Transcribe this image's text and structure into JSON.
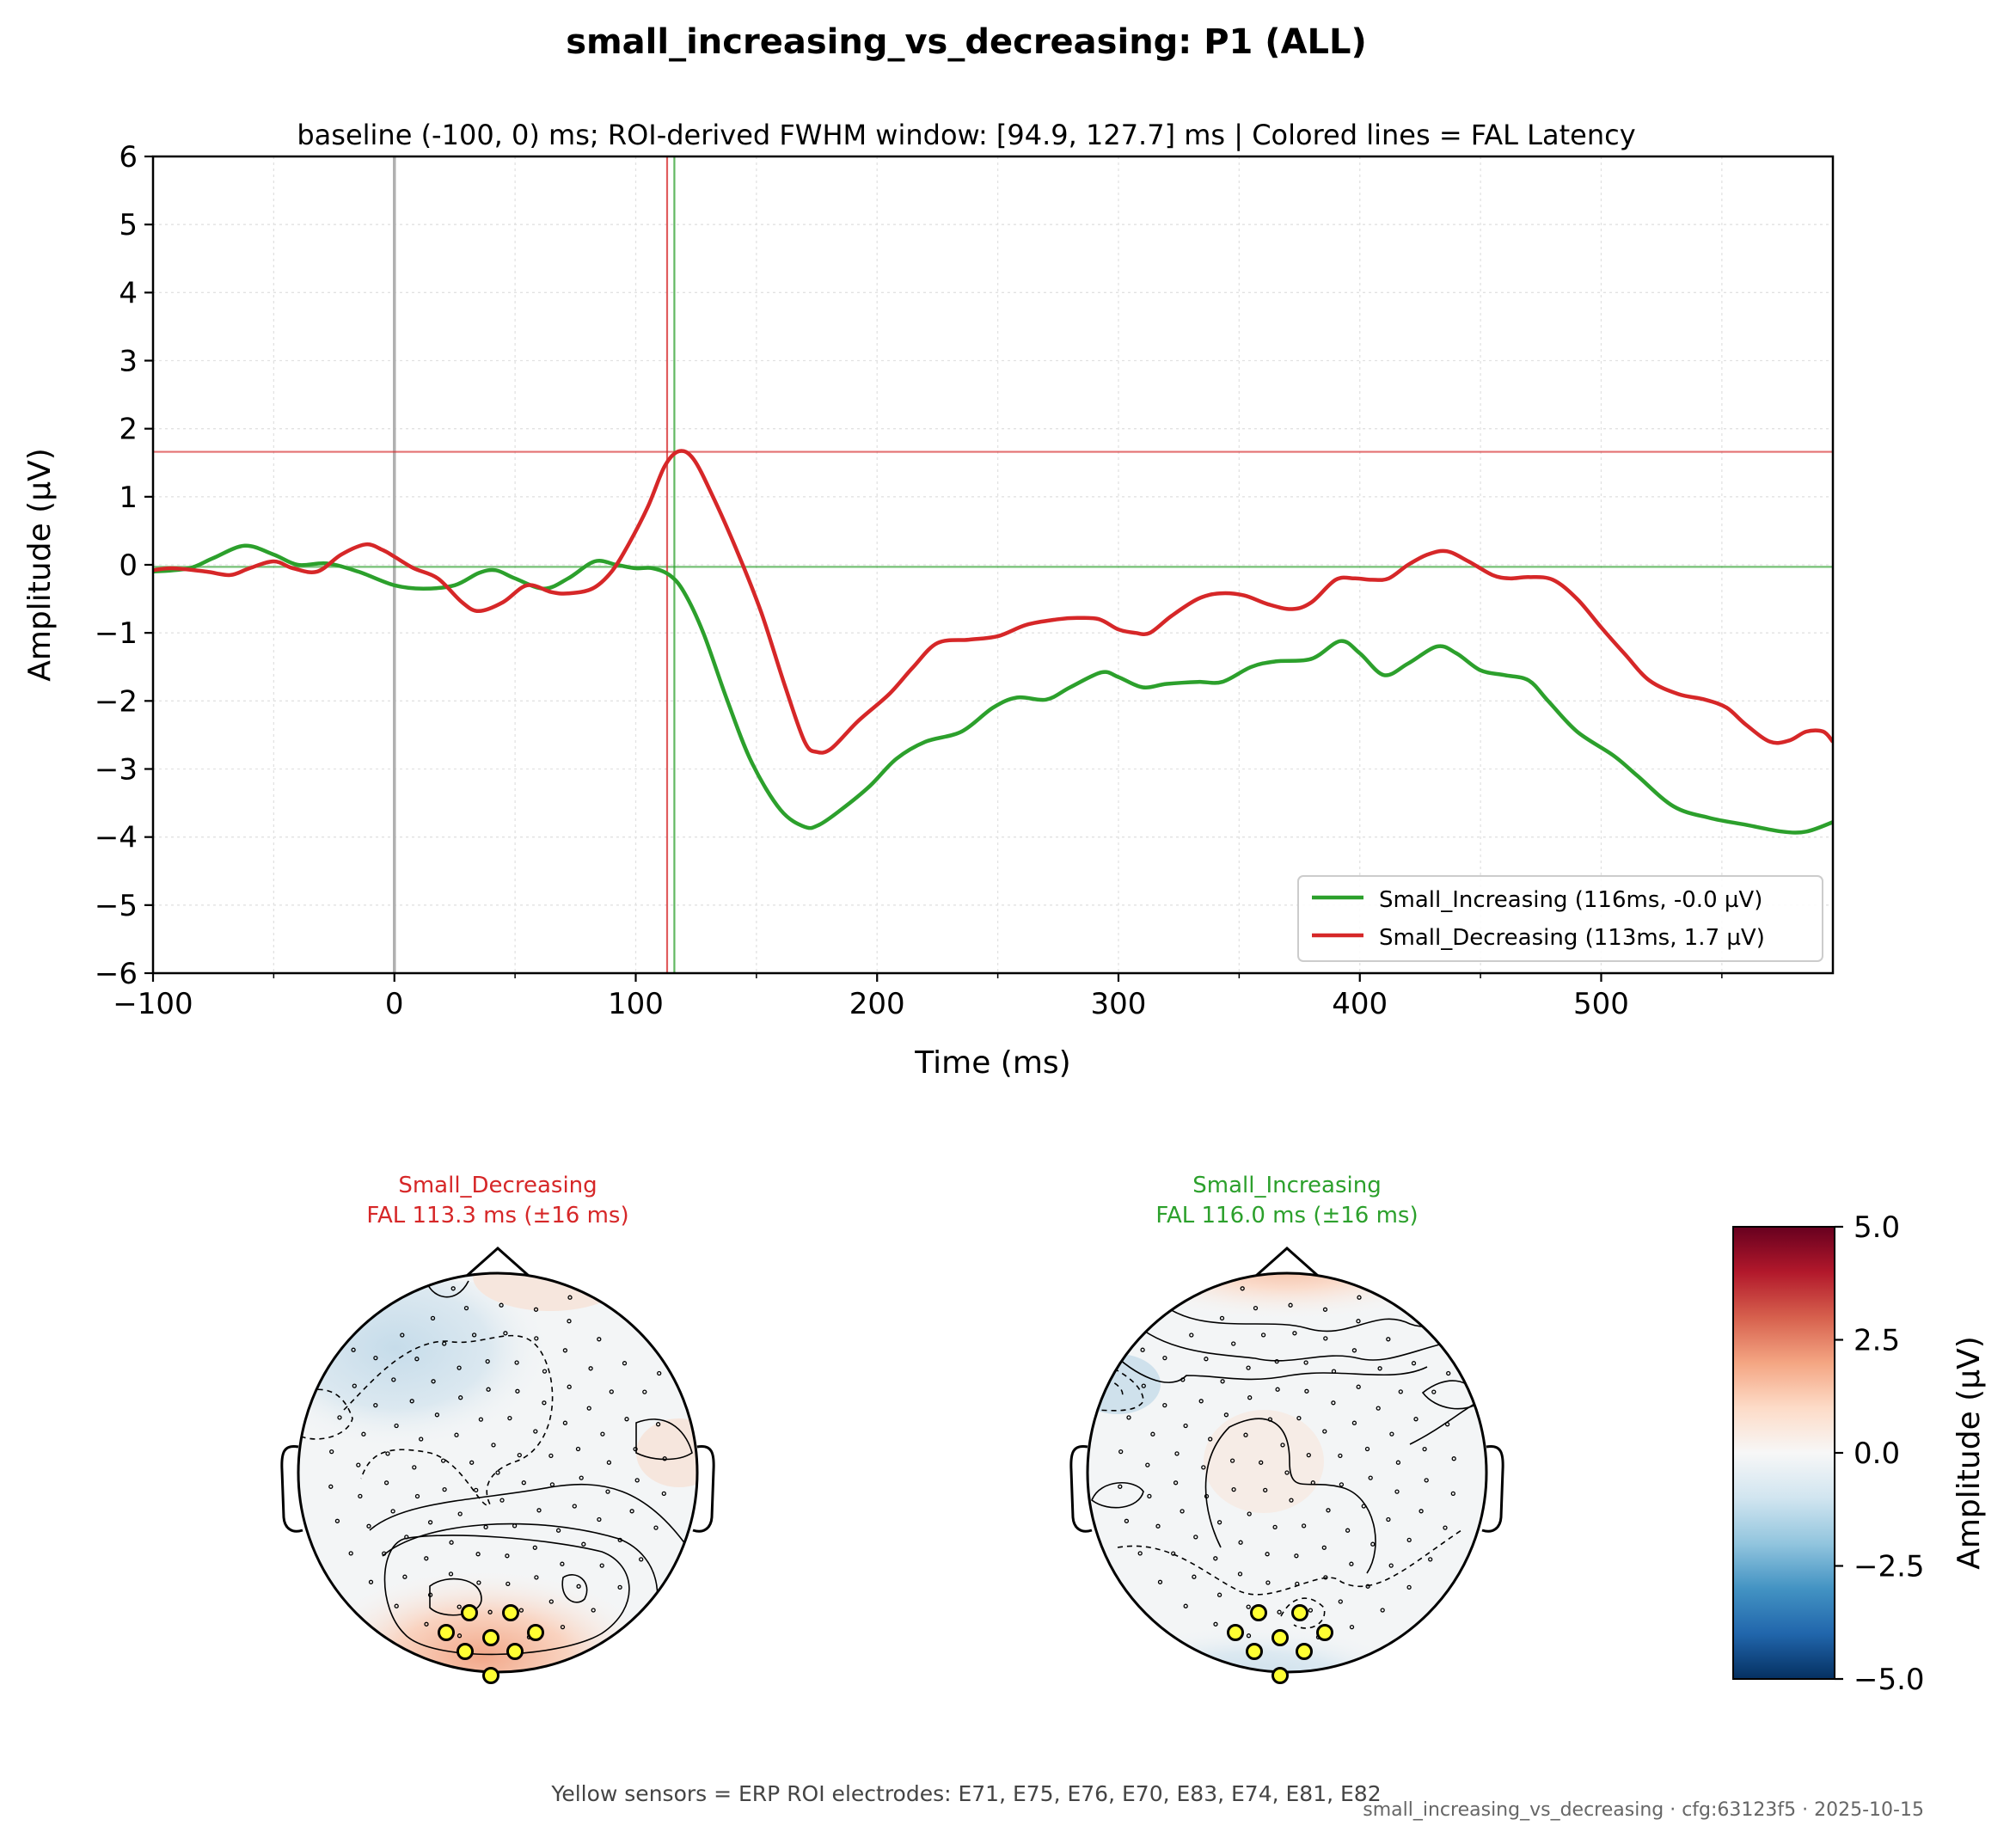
{
  "suptitle": "small_increasing_vs_decreasing: P1 (ALL)",
  "footer_note": "Yellow sensors = ERP ROI electrodes: E71, E75, E76, E70, E83, E74, E81, E82",
  "footer_meta": "small_increasing_vs_decreasing · cfg:63123f5 · 2025-10-15",
  "colors": {
    "increasing": "#2ca02c",
    "decreasing": "#d62728",
    "zero_line": "#b0b0b0",
    "roi_sensor": "#ffff33"
  },
  "chart_data": [
    {
      "type": "line",
      "title": "baseline (-100, 0) ms; ROI-derived FWHM window: [94.9, 127.7] ms | Colored lines = FAL Latency",
      "xlabel": "Time (ms)",
      "ylabel": "Amplitude (µV)",
      "xlim": [
        -100,
        596
      ],
      "ylim": [
        -6,
        6
      ],
      "xticks": [
        -100,
        0,
        100,
        200,
        300,
        400,
        500
      ],
      "xtick_labels": [
        "−100",
        "0",
        "100",
        "200",
        "300",
        "400",
        "500"
      ],
      "yticks": [
        6,
        5,
        4,
        3,
        2,
        1,
        0,
        -1,
        -2,
        -3,
        -4,
        -5,
        -6
      ],
      "ytick_labels": [
        "6",
        "5",
        "4",
        "3",
        "2",
        "1",
        "0",
        "−1",
        "−2",
        "−3",
        "−4",
        "−5",
        "−6"
      ],
      "grid": true,
      "legend_position": "lower-right",
      "series": [
        {
          "name": "Small_Increasing (116ms, -0.0 µV)",
          "color": "#2ca02c",
          "x": [
            -100,
            -85,
            -75,
            -62,
            -50,
            -40,
            -28,
            -15,
            0,
            12,
            25,
            35,
            42,
            50,
            62,
            72,
            83,
            92,
            100,
            107,
            114,
            120,
            128,
            138,
            148,
            160,
            170,
            176,
            185,
            197,
            208,
            220,
            235,
            248,
            258,
            270,
            280,
            293,
            300,
            310,
            320,
            333,
            343,
            355,
            365,
            380,
            392,
            400,
            410,
            420,
            432,
            440,
            450,
            460,
            470,
            478,
            490,
            505,
            515,
            530,
            545,
            560,
            575,
            585,
            596
          ],
          "y": [
            -0.1,
            -0.05,
            0.1,
            0.28,
            0.15,
            0.0,
            0.02,
            -0.1,
            -0.3,
            -0.35,
            -0.3,
            -0.12,
            -0.08,
            -0.2,
            -0.35,
            -0.2,
            0.05,
            0.0,
            -0.05,
            -0.05,
            -0.15,
            -0.4,
            -1.0,
            -2.0,
            -2.9,
            -3.6,
            -3.85,
            -3.82,
            -3.6,
            -3.25,
            -2.85,
            -2.6,
            -2.45,
            -2.1,
            -1.95,
            -1.98,
            -1.8,
            -1.58,
            -1.65,
            -1.8,
            -1.75,
            -1.72,
            -1.72,
            -1.5,
            -1.42,
            -1.38,
            -1.12,
            -1.3,
            -1.62,
            -1.45,
            -1.2,
            -1.3,
            -1.55,
            -1.62,
            -1.7,
            -2.0,
            -2.45,
            -2.8,
            -3.1,
            -3.55,
            -3.72,
            -3.82,
            -3.92,
            -3.92,
            -3.78
          ]
        },
        {
          "name": "Small_Decreasing (113ms, 1.7 µV)",
          "color": "#d62728",
          "x": [
            -100,
            -92,
            -78,
            -68,
            -60,
            -50,
            -42,
            -32,
            -22,
            -12,
            -5,
            0,
            8,
            18,
            28,
            35,
            45,
            55,
            65,
            72,
            82,
            90,
            97,
            105,
            112,
            118,
            124,
            132,
            142,
            152,
            162,
            170,
            175,
            181,
            192,
            205,
            215,
            225,
            238,
            250,
            262,
            275,
            283,
            292,
            300,
            307,
            313,
            322,
            333,
            342,
            352,
            362,
            372,
            380,
            390,
            398,
            405,
            412,
            420,
            428,
            436,
            445,
            455,
            462,
            470,
            480,
            490,
            500,
            510,
            520,
            532,
            543,
            552,
            560,
            570,
            578,
            585,
            592,
            596
          ],
          "y": [
            -0.08,
            -0.05,
            -0.1,
            -0.15,
            -0.05,
            0.05,
            -0.05,
            -0.1,
            0.15,
            0.3,
            0.22,
            0.12,
            -0.05,
            -0.2,
            -0.55,
            -0.68,
            -0.55,
            -0.3,
            -0.4,
            -0.42,
            -0.35,
            -0.1,
            0.3,
            0.85,
            1.45,
            1.67,
            1.55,
            1.0,
            0.2,
            -0.7,
            -1.8,
            -2.6,
            -2.75,
            -2.7,
            -2.3,
            -1.9,
            -1.5,
            -1.15,
            -1.1,
            -1.05,
            -0.88,
            -0.8,
            -0.78,
            -0.8,
            -0.95,
            -1.0,
            -1.0,
            -0.75,
            -0.5,
            -0.42,
            -0.45,
            -0.58,
            -0.65,
            -0.55,
            -0.22,
            -0.2,
            -0.22,
            -0.2,
            0.0,
            0.15,
            0.2,
            0.05,
            -0.15,
            -0.2,
            -0.18,
            -0.22,
            -0.5,
            -0.92,
            -1.32,
            -1.7,
            -1.9,
            -1.98,
            -2.1,
            -2.35,
            -2.6,
            -2.58,
            -2.45,
            -2.45,
            -2.6
          ]
        }
      ],
      "latency_markers": [
        {
          "series": "Small_Increasing",
          "latency_ms": 116,
          "amplitude_uv": -0.03,
          "color": "#2ca02c"
        },
        {
          "series": "Small_Decreasing",
          "latency_ms": 113,
          "amplitude_uv": 1.66,
          "color": "#d62728"
        }
      ],
      "onset_marker_ms": 0
    },
    {
      "type": "heatmap",
      "subtype": "topomap",
      "title": "Small_Decreasing\nFAL 113.3 ms (±16 ms)",
      "title_lines": [
        "Small_Decreasing",
        "FAL 113.3 ms (±16 ms)"
      ],
      "title_color": "#d62728",
      "pattern": "positive posterior-occipital, weak negative frontal/left",
      "roi_electrodes": [
        "E71",
        "E75",
        "E76",
        "E70",
        "E83",
        "E74",
        "E81",
        "E82"
      ]
    },
    {
      "type": "heatmap",
      "subtype": "topomap",
      "title": "Small_Increasing\nFAL 116.0 ms (±16 ms)",
      "title_lines": [
        "Small_Increasing",
        "FAL 116.0 ms (±16 ms)"
      ],
      "title_color": "#2ca02c",
      "pattern": "positive frontal, weak negative posterior/left",
      "roi_electrodes": [
        "E71",
        "E75",
        "E76",
        "E70",
        "E83",
        "E74",
        "E81",
        "E82"
      ]
    },
    {
      "type": "heatmap",
      "subtype": "colorbar",
      "label": "Amplitude (µV)",
      "range": [
        -5,
        5
      ],
      "colormap": "RdBu_r",
      "ticks": [
        5,
        2.5,
        0,
        -2.5,
        -5
      ],
      "tick_labels": [
        "5.0",
        "2.5",
        "0.0",
        "−2.5",
        "−5.0"
      ]
    }
  ]
}
